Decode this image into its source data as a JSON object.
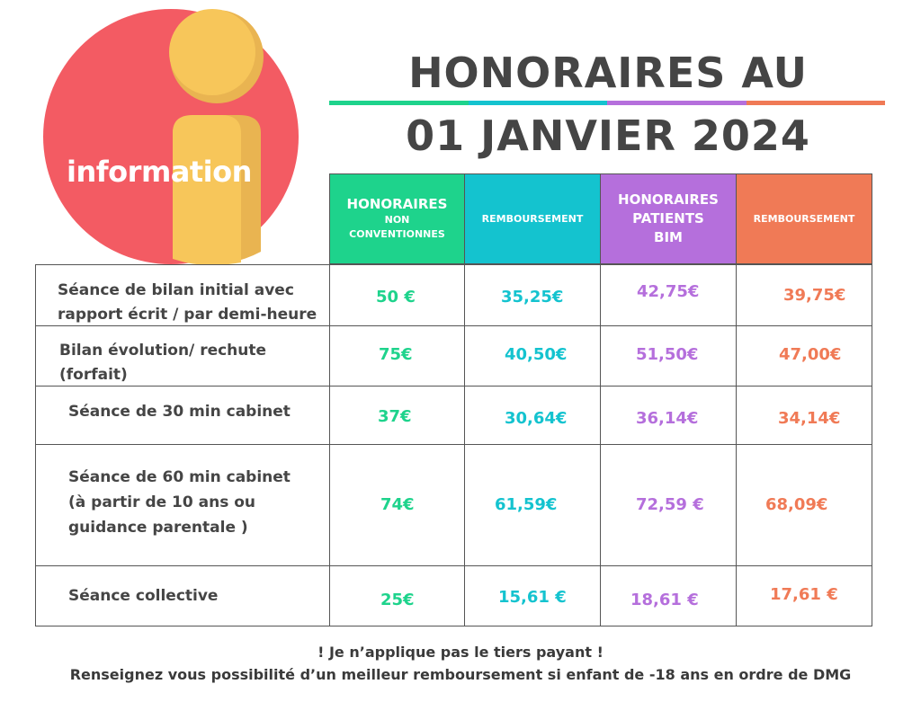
{
  "logo": {
    "text": "information"
  },
  "title": {
    "line1": "HONORAIRES AU",
    "line2": "01 JANVIER 2024"
  },
  "colors": {
    "green": "#1ed38c",
    "cyan": "#14c3cf",
    "purple": "#b56fdc",
    "orange": "#f07a56",
    "logo_red": "#f35b63",
    "logo_yellow": "#f7c65a"
  },
  "header": {
    "col1": {
      "line1": "HONORAIRES",
      "line2": "NON",
      "line3": "CONVENTIONNES"
    },
    "col2": {
      "line1": "REMBOURSEMENT"
    },
    "col3": {
      "line1": "HONORAIRES",
      "line2": "PATIENTS",
      "line3": "BIM"
    },
    "col4": {
      "line1": "REMBOURSEMENT"
    }
  },
  "rows": [
    {
      "label1": "Séance de bilan initial avec",
      "label2": "rapport écrit / par demi-heure",
      "v1": "50 €",
      "v2": "35,25€",
      "v3": "42,75€",
      "v4": "39,75€"
    },
    {
      "label1": "Bilan évolution/ rechute",
      "label2": "(forfait)",
      "v1": "75€",
      "v2": "40,50€",
      "v3": "51,50€",
      "v4": "47,00€"
    },
    {
      "label1": "Séance de 30 min cabinet",
      "v1": "37€",
      "v2": "30,64€",
      "v3": "36,14€",
      "v4": "34,14€"
    },
    {
      "label1": "Séance de 60 min cabinet",
      "label2": "(à partir de 10 ans ou",
      "label3": "guidance parentale )",
      "v1": "74€",
      "v2": "61,59€",
      "v3": "72,59 €",
      "v4": "68,09€"
    },
    {
      "label1": "Séance collective",
      "v1": "25€",
      "v2": "15,61 €",
      "v3": "18,61  €",
      "v4": "17,61 €"
    }
  ],
  "footer": {
    "line1": "! Je n’applique pas le tiers payant !",
    "line2": "Renseignez vous possibilité d’un meilleur remboursement si enfant de -18 ans en ordre de DMG"
  }
}
